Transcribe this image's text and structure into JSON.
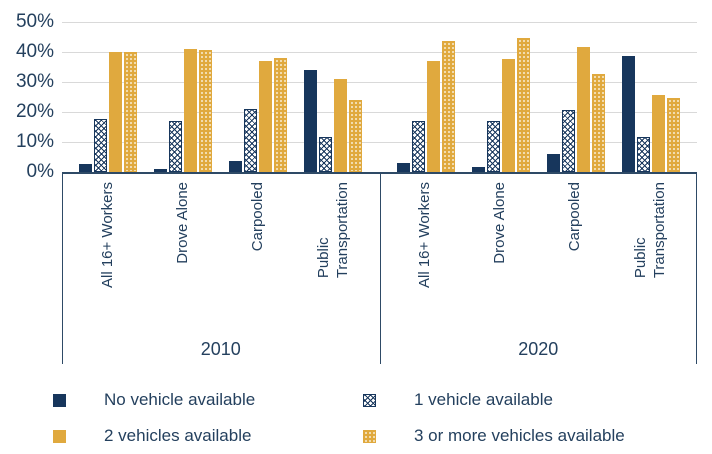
{
  "colors": {
    "navy": "#17365c",
    "gold": "#e0a93e",
    "text": "#24405e",
    "gridline": "#d9d9d9",
    "axis": "#2e4a66"
  },
  "chart_data": {
    "type": "bar",
    "title": "",
    "xlabel": "",
    "ylabel": "",
    "ylim": [
      0,
      50
    ],
    "grid": true,
    "yticks": [
      {
        "value": 0,
        "label": "0%"
      },
      {
        "value": 10,
        "label": "10%"
      },
      {
        "value": 20,
        "label": "20%"
      },
      {
        "value": 30,
        "label": "30%"
      },
      {
        "value": 40,
        "label": "40%"
      },
      {
        "value": 50,
        "label": "50%"
      }
    ],
    "panels": [
      {
        "year": "2010",
        "categories": [
          "All 16+ Workers",
          "Drove Alone",
          "Carpooled",
          "Public\nTransportation"
        ],
        "series": [
          {
            "name": "No vehicle available",
            "style": "navy-solid",
            "values": [
              2.5,
              1,
              3.5,
              34
            ]
          },
          {
            "name": "1 vehicle available",
            "style": "navy-crosshatch",
            "values": [
              17.5,
              17,
              21,
              11.5
            ]
          },
          {
            "name": "2 vehicles available",
            "style": "gold-solid",
            "values": [
              40,
              41,
              37,
              31
            ]
          },
          {
            "name": "3 or more vehicles available",
            "style": "gold-dotted",
            "values": [
              40,
              40.5,
              38,
              24
            ]
          }
        ]
      },
      {
        "year": "2020",
        "categories": [
          "All 16+ Workers",
          "Drove Alone",
          "Carpooled",
          "Public\nTransportation"
        ],
        "series": [
          {
            "name": "No vehicle available",
            "style": "navy-solid",
            "values": [
              3,
              1.5,
              6,
              38.5
            ]
          },
          {
            "name": "1 vehicle available",
            "style": "navy-crosshatch",
            "values": [
              17,
              17,
              20.5,
              11.5
            ]
          },
          {
            "name": "2 vehicles available",
            "style": "gold-solid",
            "values": [
              37,
              37.5,
              41.5,
              25.5
            ]
          },
          {
            "name": "3 or more vehicles available",
            "style": "gold-dotted",
            "values": [
              43.5,
              44.5,
              32.5,
              24.5
            ]
          }
        ]
      }
    ],
    "legend": {
      "position": "bottom",
      "items": [
        {
          "label": "No vehicle available",
          "style": "navy-solid"
        },
        {
          "label": "1 vehicle available",
          "style": "navy-crosshatch"
        },
        {
          "label": "2 vehicles available",
          "style": "gold-solid"
        },
        {
          "label": "3 or more vehicles available",
          "style": "gold-dotted"
        }
      ]
    }
  }
}
